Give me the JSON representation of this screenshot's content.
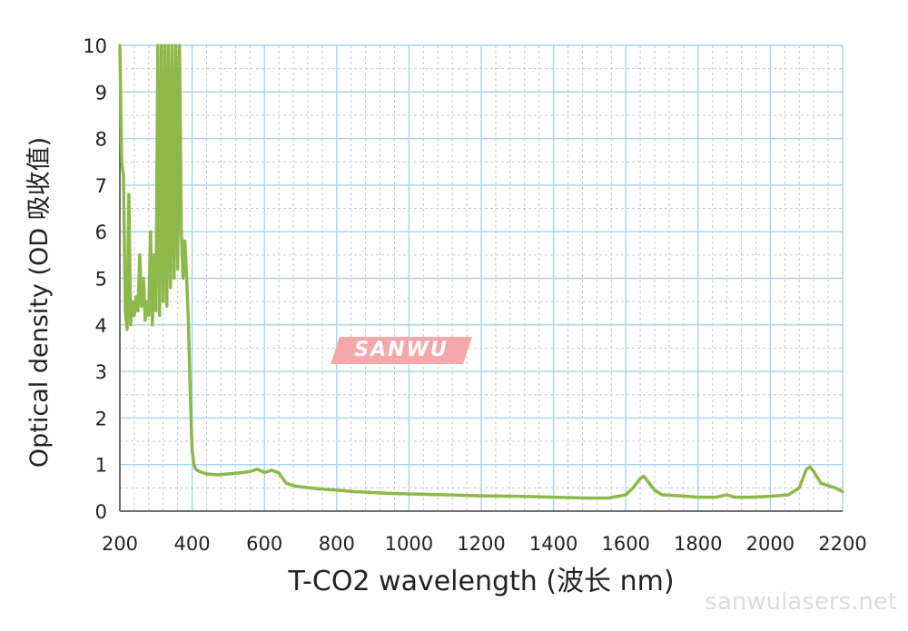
{
  "chart_data": {
    "type": "line",
    "title": "",
    "xlabel": "T-CO2  wavelength  (波长  nm)",
    "ylabel": "Optical density (OD 吸收值)",
    "xlim": [
      200,
      2200
    ],
    "ylim": [
      0,
      10
    ],
    "x_ticks": [
      "200",
      "400",
      "600",
      "800",
      "1000",
      "1200",
      "1400",
      "1600",
      "1800",
      "2000",
      "2200"
    ],
    "y_ticks": [
      "0",
      "1",
      "2",
      "3",
      "4",
      "5",
      "6",
      "7",
      "8",
      "9",
      "10"
    ],
    "grid": true,
    "legend": "none",
    "series": [
      {
        "color": "#8db84a",
        "x": [
          200,
          205,
          210,
          215,
          220,
          225,
          230,
          235,
          240,
          245,
          250,
          255,
          260,
          265,
          270,
          275,
          280,
          285,
          290,
          295,
          300,
          305,
          310,
          315,
          320,
          325,
          330,
          335,
          340,
          345,
          350,
          355,
          360,
          365,
          370,
          375,
          380,
          385,
          390,
          395,
          400,
          405,
          410,
          420,
          440,
          470,
          500,
          530,
          560,
          580,
          600,
          620,
          640,
          660,
          680,
          700,
          750,
          800,
          850,
          900,
          950,
          1000,
          1100,
          1200,
          1300,
          1400,
          1500,
          1550,
          1600,
          1620,
          1640,
          1650,
          1660,
          1680,
          1700,
          1750,
          1800,
          1850,
          1880,
          1900,
          1950,
          2000,
          2050,
          2080,
          2100,
          2110,
          2120,
          2140,
          2160,
          2180,
          2200
        ],
        "values": [
          10,
          7.5,
          7.2,
          4.3,
          3.9,
          6.8,
          4.0,
          4.5,
          4.2,
          4.6,
          4.3,
          5.5,
          4.4,
          5.0,
          4.1,
          4.5,
          4.2,
          6.0,
          4.0,
          5.5,
          4.3,
          10,
          4.2,
          10,
          4.5,
          10,
          4.4,
          10,
          4.8,
          10,
          5.0,
          10,
          5.2,
          10,
          6.0,
          5.0,
          5.8,
          5.0,
          4.0,
          2.5,
          1.3,
          1.0,
          0.9,
          0.85,
          0.8,
          0.78,
          0.8,
          0.82,
          0.85,
          0.9,
          0.83,
          0.88,
          0.82,
          0.6,
          0.55,
          0.52,
          0.48,
          0.45,
          0.42,
          0.4,
          0.38,
          0.37,
          0.35,
          0.33,
          0.32,
          0.3,
          0.28,
          0.28,
          0.35,
          0.5,
          0.7,
          0.75,
          0.65,
          0.45,
          0.35,
          0.33,
          0.3,
          0.3,
          0.35,
          0.3,
          0.3,
          0.32,
          0.35,
          0.5,
          0.9,
          0.95,
          0.85,
          0.6,
          0.55,
          0.5,
          0.42
        ]
      }
    ]
  },
  "watermark": {
    "badge_text": "SANWU",
    "site_text": "sanwulasers.net"
  }
}
